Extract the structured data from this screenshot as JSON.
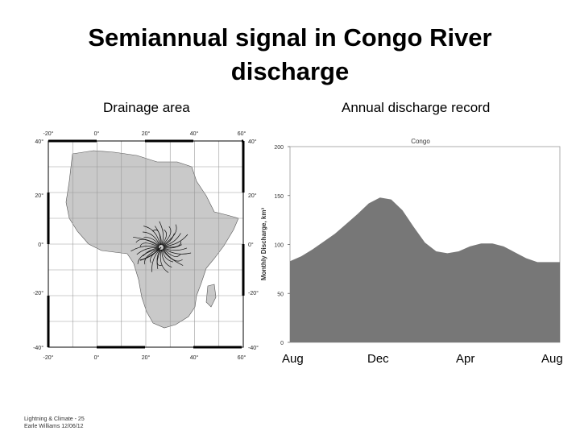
{
  "slide": {
    "title_line1": "Semiannual signal in Congo River",
    "title_line2": "discharge",
    "footer_line1": "Lightning & Climate - 25",
    "footer_line2": "Earle Williams 12/06/12"
  },
  "map": {
    "caption": "Drainage area",
    "lon_labels": [
      "-20°",
      "0°",
      "20°",
      "40°",
      "60°"
    ],
    "lat_labels": [
      "40°",
      "20°",
      "0°",
      "-20°",
      "-40°"
    ],
    "colors": {
      "land": "#c9c9c9",
      "grid": "#9a9a9a",
      "river": "#111111"
    }
  },
  "chart_data": {
    "type": "area",
    "title": "Congo",
    "caption": "Annual discharge record",
    "xlabel": "",
    "ylabel": "Monthly Discharge, km³",
    "ylim": [
      0,
      200
    ],
    "yticks": [
      "0",
      "50",
      "100",
      "150",
      "200"
    ],
    "month_labels": [
      "Aug",
      "Dec",
      "Apr",
      "Aug"
    ],
    "series": [
      {
        "name": "Congo",
        "x": [
          0,
          0.5,
          1,
          1.5,
          2,
          2.5,
          3,
          3.5,
          4,
          4.5,
          5,
          5.5,
          6,
          6.5,
          7,
          7.5,
          8,
          8.5,
          9,
          9.5,
          10,
          10.5,
          11,
          11.5,
          12
        ],
        "values": [
          83,
          88,
          95,
          103,
          111,
          121,
          131,
          142,
          148,
          146,
          135,
          118,
          102,
          93,
          91,
          93,
          98,
          101,
          101,
          98,
          92,
          86,
          82,
          82,
          82
        ],
        "color": "#777777"
      }
    ]
  }
}
